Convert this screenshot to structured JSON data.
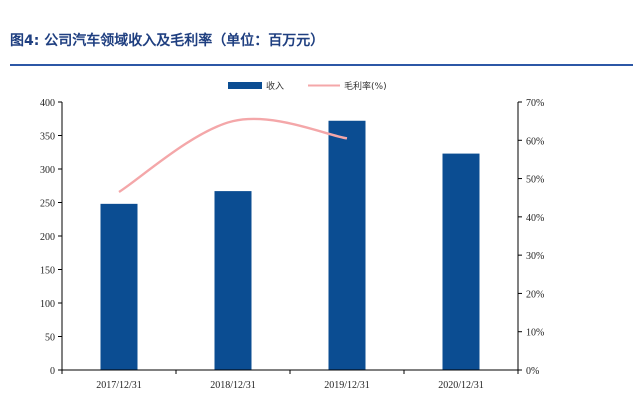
{
  "title": "图4: 公司汽车领域收入及毛利率（单位：百万元）",
  "colors": {
    "bar": "#0b4d92",
    "line": "#f4a7a9",
    "title": "#1f3f80",
    "rule": "#2c57a6"
  },
  "chart_data": {
    "type": "bar",
    "categories": [
      "2017/12/31",
      "2018/12/31",
      "2019/12/31",
      "2020/12/31"
    ],
    "series": [
      {
        "name": "收入",
        "type": "bar",
        "axis": "left",
        "values": [
          248,
          267,
          372,
          323
        ]
      },
      {
        "name": "毛利率(%)",
        "type": "line",
        "axis": "right",
        "values": [
          46.5,
          65.0,
          60.5,
          null
        ]
      }
    ],
    "left_axis": {
      "ylim": [
        0,
        400
      ],
      "ticks": [
        "0",
        "50",
        "100",
        "150",
        "200",
        "250",
        "300",
        "350",
        "400"
      ]
    },
    "right_axis": {
      "ylim": [
        0,
        70
      ],
      "ticks": [
        "0%",
        "10%",
        "20%",
        "30%",
        "40%",
        "50%",
        "60%",
        "70%"
      ]
    },
    "legend": [
      "收入",
      "毛利率(%)"
    ],
    "legend_position": "top-center",
    "grid": false
  }
}
